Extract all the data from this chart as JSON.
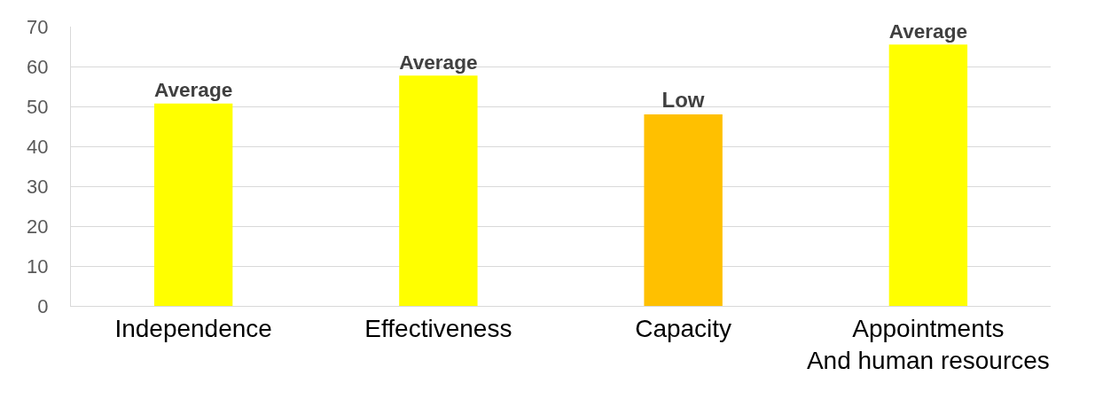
{
  "chart_data": {
    "type": "bar",
    "categories": [
      "Independence",
      "Effectiveness",
      "Capacity",
      "Appointments\nAnd human resources"
    ],
    "values": [
      50.7,
      57.7,
      48,
      65.5
    ],
    "colors": [
      "#ffff00",
      "#ffff00",
      "#ffc000",
      "#ffff00"
    ],
    "value_labels": [
      "Average",
      "Average",
      "Low",
      "Average"
    ],
    "ylim": [
      0,
      70
    ],
    "yticks": [
      0,
      10,
      20,
      30,
      40,
      50,
      60,
      70
    ],
    "grid": "y"
  }
}
